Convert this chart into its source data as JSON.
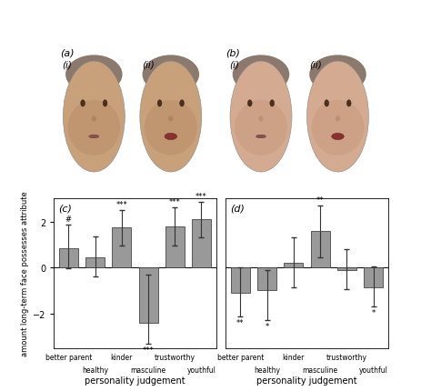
{
  "panel_c": {
    "categories": [
      "better parent",
      "healthy",
      "kinder",
      "masculine",
      "trustworthy",
      "youthful"
    ],
    "bar_heights": [
      0.85,
      0.45,
      1.75,
      -2.4,
      1.8,
      2.1
    ],
    "error_upper": [
      1.85,
      1.35,
      2.5,
      -0.3,
      2.6,
      2.85
    ],
    "error_lower": [
      -0.05,
      -0.4,
      0.95,
      -3.3,
      0.95,
      1.3
    ],
    "significance": [
      "#",
      "",
      "***",
      "***",
      "***",
      "***"
    ],
    "sig_positions": [
      "top",
      "",
      "top",
      "bottom",
      "top",
      "top"
    ],
    "ylim": [
      -3.5,
      3.0
    ],
    "yticks": [
      -2,
      0,
      2
    ],
    "ylabel": "amount long-term face possesses attribute",
    "xlabel": "personality judgement",
    "label": "(c)"
  },
  "panel_d": {
    "categories": [
      "better parent",
      "healthy",
      "kinder",
      "masculine",
      "trustworthy",
      "youthful"
    ],
    "bar_heights": [
      -1.1,
      -1.0,
      0.2,
      1.6,
      -0.1,
      -0.85
    ],
    "error_upper": [
      0.0,
      -0.1,
      1.3,
      2.7,
      0.8,
      0.05
    ],
    "error_lower": [
      -2.15,
      -2.3,
      -0.85,
      0.45,
      -0.95,
      -1.7
    ],
    "significance": [
      "**",
      "*",
      "",
      "**",
      "",
      "*"
    ],
    "sig_positions": [
      "bottom",
      "bottom",
      "",
      "top",
      "",
      "bottom"
    ],
    "ylim": [
      -3.5,
      3.0
    ],
    "yticks": [
      -2,
      0,
      2
    ],
    "xlabel": "personality judgement",
    "label": "(d)"
  },
  "bar_color": "#999999",
  "bar_edge_color": "#444444",
  "background_color": "#ffffff",
  "stagger_upper": [
    0,
    2,
    4
  ],
  "stagger_lower": [
    1,
    3,
    5
  ],
  "face_label_a": "(a)",
  "face_label_b": "(b)",
  "face_label_i": "(i)",
  "face_label_ii": "(ii)"
}
